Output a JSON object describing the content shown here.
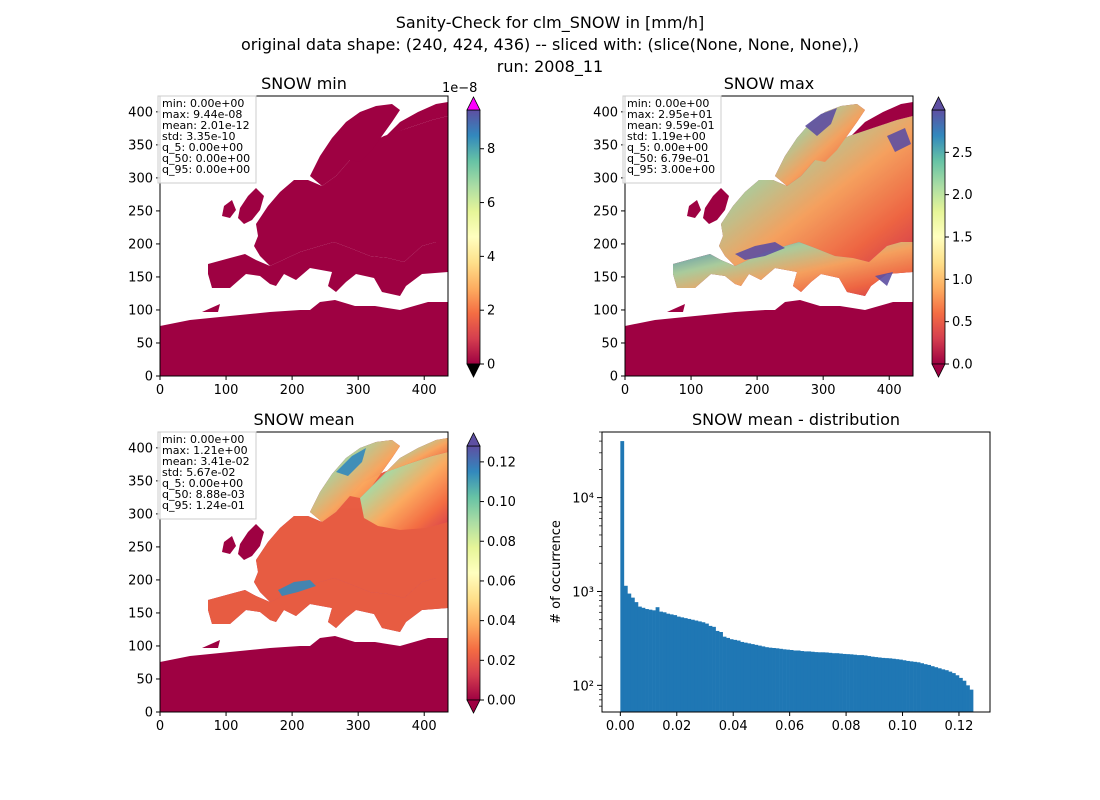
{
  "figure": {
    "title_lines": [
      "Sanity-Check for clm_SNOW in [mm/h]",
      "original data shape: (240, 424, 436) -- sliced with: (slice(None, None, None),)",
      "run: 2008_11"
    ]
  },
  "panels": [
    {
      "title": "SNOW min",
      "map_x_ticks": [
        "0",
        "100",
        "200",
        "300",
        "400"
      ],
      "map_y_ticks": [
        "0",
        "50",
        "100",
        "150",
        "200",
        "250",
        "300",
        "350",
        "400"
      ],
      "colorbar": {
        "ticks": [
          0,
          2,
          4,
          6,
          8
        ],
        "tick_labels": [
          "0",
          "2",
          "4",
          "6",
          "8"
        ],
        "max": 9.44,
        "offset_label": "1e−8",
        "top_arrow_color": "#ff00ff",
        "bottom_arrow_color": "#000000"
      },
      "stats": [
        "min: 0.00e+00",
        "max: 9.44e-08",
        "mean: 2.01e-12",
        "std: 3.35e-10",
        "q_5: 0.00e+00",
        "q_50: 0.00e+00",
        "q_95: 0.00e+00"
      ]
    },
    {
      "title": "SNOW max",
      "map_x_ticks": [
        "0",
        "100",
        "200",
        "300",
        "400"
      ],
      "map_y_ticks": [
        "0",
        "50",
        "100",
        "150",
        "200",
        "250",
        "300",
        "350",
        "400"
      ],
      "colorbar": {
        "ticks": [
          0,
          0.5,
          1.0,
          1.5,
          2.0,
          2.5
        ],
        "tick_labels": [
          "0.0",
          "0.5",
          "1.0",
          "1.5",
          "2.0",
          "2.5"
        ],
        "max": 3.0,
        "offset_label": "",
        "top_arrow_color": "#5e4fa2",
        "bottom_arrow_color": "#9e0142"
      },
      "stats": [
        "min: 0.00e+00",
        "max: 2.95e+01",
        "mean: 9.59e-01",
        "std: 1.19e+00",
        "q_5: 0.00e+00",
        "q_50: 6.79e-01",
        "q_95: 3.00e+00"
      ]
    },
    {
      "title": "SNOW mean",
      "map_x_ticks": [
        "0",
        "100",
        "200",
        "300",
        "400"
      ],
      "map_y_ticks": [
        "0",
        "50",
        "100",
        "150",
        "200",
        "250",
        "300",
        "350",
        "400"
      ],
      "colorbar": {
        "ticks": [
          0,
          0.02,
          0.04,
          0.06,
          0.08,
          0.1,
          0.12
        ],
        "tick_labels": [
          "0.00",
          "0.02",
          "0.04",
          "0.06",
          "0.08",
          "0.10",
          "0.12"
        ],
        "max": 0.128,
        "offset_label": "",
        "top_arrow_color": "#5e4fa2",
        "bottom_arrow_color": "#9e0142"
      },
      "stats": [
        "min: 0.00e+00",
        "max: 1.21e+00",
        "mean: 3.41e-02",
        "std: 5.67e-02",
        "q_5: 0.00e+00",
        "q_50: 8.88e-03",
        "q_95: 1.24e-01"
      ]
    }
  ],
  "histogram_panel": {
    "title": "SNOW mean - distribution",
    "ylabel": "# of occurrence",
    "x_tick_labels": [
      "0.00",
      "0.02",
      "0.04",
      "0.06",
      "0.08",
      "0.10",
      "0.12"
    ],
    "y_tick_labels": [
      "10²",
      "10³",
      "10⁴"
    ]
  },
  "colors": {
    "bar": "#1f77b4",
    "land_low": "#9e0142",
    "colormap": [
      "#9e0142",
      "#d53e4f",
      "#f46d43",
      "#fdae61",
      "#fee08b",
      "#ffffbf",
      "#e6f598",
      "#abdda4",
      "#66c2a5",
      "#3288bd",
      "#5e4fa2"
    ]
  },
  "chart_data": {
    "type": "bar",
    "title": "SNOW mean - distribution",
    "xlabel": "",
    "ylabel": "# of occurrence",
    "yscale": "log",
    "xlim": [
      -0.0065,
      0.131
    ],
    "ylim": [
      52,
      50000
    ],
    "bin_width": 0.00125,
    "bin_start": 0.0,
    "values": [
      40000,
      1150,
      950,
      860,
      770,
      690,
      670,
      650,
      640,
      630,
      680,
      610,
      600,
      580,
      570,
      560,
      540,
      530,
      520,
      510,
      500,
      490,
      480,
      470,
      455,
      430,
      420,
      380,
      370,
      330,
      320,
      310,
      305,
      300,
      290,
      285,
      280,
      275,
      270,
      265,
      260,
      255,
      252,
      250,
      248,
      245,
      242,
      240,
      238,
      235,
      235,
      232,
      230,
      230,
      228,
      226,
      225,
      225,
      224,
      222,
      220,
      220,
      218,
      216,
      215,
      214,
      212,
      210,
      210,
      208,
      205,
      202,
      200,
      198,
      196,
      195,
      194,
      192,
      190,
      188,
      185,
      182,
      180,
      178,
      176,
      172,
      168,
      165,
      160,
      156,
      152,
      148,
      145,
      140,
      135,
      128,
      120,
      112,
      100,
      90
    ]
  }
}
